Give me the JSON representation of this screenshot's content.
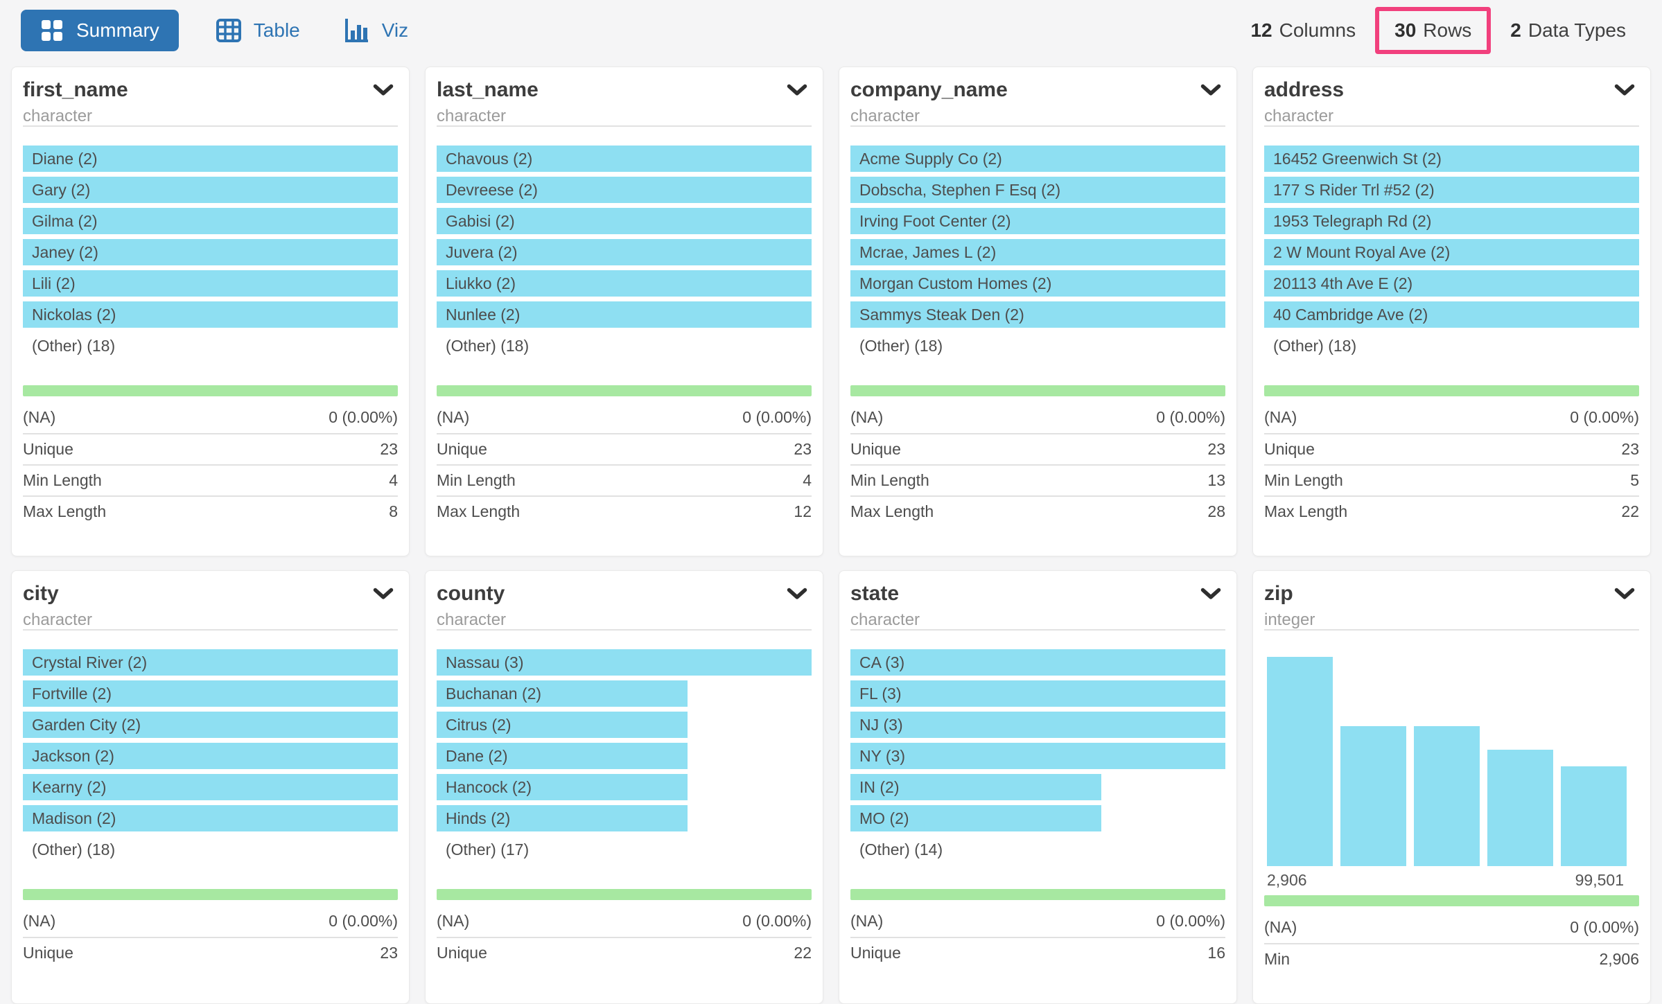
{
  "colors": {
    "accent_blue": "#2e74b3",
    "bar_cyan": "#8edff2",
    "bar_green": "#a7e8a1",
    "highlight_pink": "#f1407d"
  },
  "tabs": [
    {
      "label": "Summary",
      "icon": "grid-icon",
      "active": true
    },
    {
      "label": "Table",
      "icon": "table-icon",
      "active": false
    },
    {
      "label": "Viz",
      "icon": "bar-chart-icon",
      "active": false
    }
  ],
  "meta": [
    {
      "value": "12",
      "label": "Columns",
      "highlighted": false
    },
    {
      "value": "30",
      "label": "Rows",
      "highlighted": true
    },
    {
      "value": "2",
      "label": "Data Types",
      "highlighted": false
    }
  ],
  "cards": [
    {
      "name": "first_name",
      "type": "character",
      "values": [
        {
          "label": "Diane (2)",
          "pct": 100
        },
        {
          "label": "Gary (2)",
          "pct": 100
        },
        {
          "label": "Gilma (2)",
          "pct": 100
        },
        {
          "label": "Janey (2)",
          "pct": 100
        },
        {
          "label": "Lili (2)",
          "pct": 100
        },
        {
          "label": "Nickolas (2)",
          "pct": 100
        },
        {
          "label": "(Other) (18)",
          "pct": 0
        }
      ],
      "stats": [
        {
          "label": "(NA)",
          "value": "0 (0.00%)"
        },
        {
          "label": "Unique",
          "value": "23"
        },
        {
          "label": "Min Length",
          "value": "4"
        },
        {
          "label": "Max Length",
          "value": "8"
        }
      ]
    },
    {
      "name": "last_name",
      "type": "character",
      "values": [
        {
          "label": "Chavous (2)",
          "pct": 100
        },
        {
          "label": "Devreese (2)",
          "pct": 100
        },
        {
          "label": "Gabisi (2)",
          "pct": 100
        },
        {
          "label": "Juvera (2)",
          "pct": 100
        },
        {
          "label": "Liukko (2)",
          "pct": 100
        },
        {
          "label": "Nunlee (2)",
          "pct": 100
        },
        {
          "label": "(Other) (18)",
          "pct": 0
        }
      ],
      "stats": [
        {
          "label": "(NA)",
          "value": "0 (0.00%)"
        },
        {
          "label": "Unique",
          "value": "23"
        },
        {
          "label": "Min Length",
          "value": "4"
        },
        {
          "label": "Max Length",
          "value": "12"
        }
      ]
    },
    {
      "name": "company_name",
      "type": "character",
      "values": [
        {
          "label": "Acme Supply Co (2)",
          "pct": 100
        },
        {
          "label": "Dobscha, Stephen F Esq (2)",
          "pct": 100
        },
        {
          "label": "Irving Foot Center (2)",
          "pct": 100
        },
        {
          "label": "Mcrae, James L (2)",
          "pct": 100
        },
        {
          "label": "Morgan Custom Homes (2)",
          "pct": 100
        },
        {
          "label": "Sammys Steak Den (2)",
          "pct": 100
        },
        {
          "label": "(Other) (18)",
          "pct": 0
        }
      ],
      "stats": [
        {
          "label": "(NA)",
          "value": "0 (0.00%)"
        },
        {
          "label": "Unique",
          "value": "23"
        },
        {
          "label": "Min Length",
          "value": "13"
        },
        {
          "label": "Max Length",
          "value": "28"
        }
      ]
    },
    {
      "name": "address",
      "type": "character",
      "values": [
        {
          "label": "16452 Greenwich St (2)",
          "pct": 100
        },
        {
          "label": "177 S Rider Trl #52 (2)",
          "pct": 100
        },
        {
          "label": "1953 Telegraph Rd (2)",
          "pct": 100
        },
        {
          "label": "2 W Mount Royal Ave (2)",
          "pct": 100
        },
        {
          "label": "20113 4th Ave E (2)",
          "pct": 100
        },
        {
          "label": "40 Cambridge Ave (2)",
          "pct": 100
        },
        {
          "label": "(Other) (18)",
          "pct": 0
        }
      ],
      "stats": [
        {
          "label": "(NA)",
          "value": "0 (0.00%)"
        },
        {
          "label": "Unique",
          "value": "23"
        },
        {
          "label": "Min Length",
          "value": "5"
        },
        {
          "label": "Max Length",
          "value": "22"
        }
      ]
    },
    {
      "name": "city",
      "type": "character",
      "values": [
        {
          "label": "Crystal River (2)",
          "pct": 100
        },
        {
          "label": "Fortville (2)",
          "pct": 100
        },
        {
          "label": "Garden City (2)",
          "pct": 100
        },
        {
          "label": "Jackson (2)",
          "pct": 100
        },
        {
          "label": "Kearny (2)",
          "pct": 100
        },
        {
          "label": "Madison (2)",
          "pct": 100
        },
        {
          "label": "(Other) (18)",
          "pct": 0
        }
      ],
      "stats": [
        {
          "label": "(NA)",
          "value": "0 (0.00%)"
        },
        {
          "label": "Unique",
          "value": "23"
        }
      ]
    },
    {
      "name": "county",
      "type": "character",
      "values": [
        {
          "label": "Nassau (3)",
          "pct": 100
        },
        {
          "label": "Buchanan (2)",
          "pct": 67
        },
        {
          "label": "Citrus (2)",
          "pct": 67
        },
        {
          "label": "Dane (2)",
          "pct": 67
        },
        {
          "label": "Hancock (2)",
          "pct": 67
        },
        {
          "label": "Hinds (2)",
          "pct": 67
        },
        {
          "label": "(Other) (17)",
          "pct": 0
        }
      ],
      "stats": [
        {
          "label": "(NA)",
          "value": "0 (0.00%)"
        },
        {
          "label": "Unique",
          "value": "22"
        }
      ]
    },
    {
      "name": "state",
      "type": "character",
      "values": [
        {
          "label": "CA (3)",
          "pct": 100
        },
        {
          "label": "FL (3)",
          "pct": 100
        },
        {
          "label": "NJ (3)",
          "pct": 100
        },
        {
          "label": "NY (3)",
          "pct": 100
        },
        {
          "label": "IN (2)",
          "pct": 67
        },
        {
          "label": "MO (2)",
          "pct": 67
        },
        {
          "label": "(Other) (14)",
          "pct": 0
        }
      ],
      "stats": [
        {
          "label": "(NA)",
          "value": "0 (0.00%)"
        },
        {
          "label": "Unique",
          "value": "16"
        }
      ]
    },
    {
      "name": "zip",
      "type": "integer",
      "histogram": {
        "type": "bar",
        "bars_pct": [
          100,
          66.9,
          66.9,
          55.6,
          47.7
        ],
        "min_label": "2,906",
        "max_label": "99,501"
      },
      "stats": [
        {
          "label": "(NA)",
          "value": "0 (0.00%)"
        },
        {
          "label": "Min",
          "value": "2,906"
        }
      ]
    }
  ]
}
